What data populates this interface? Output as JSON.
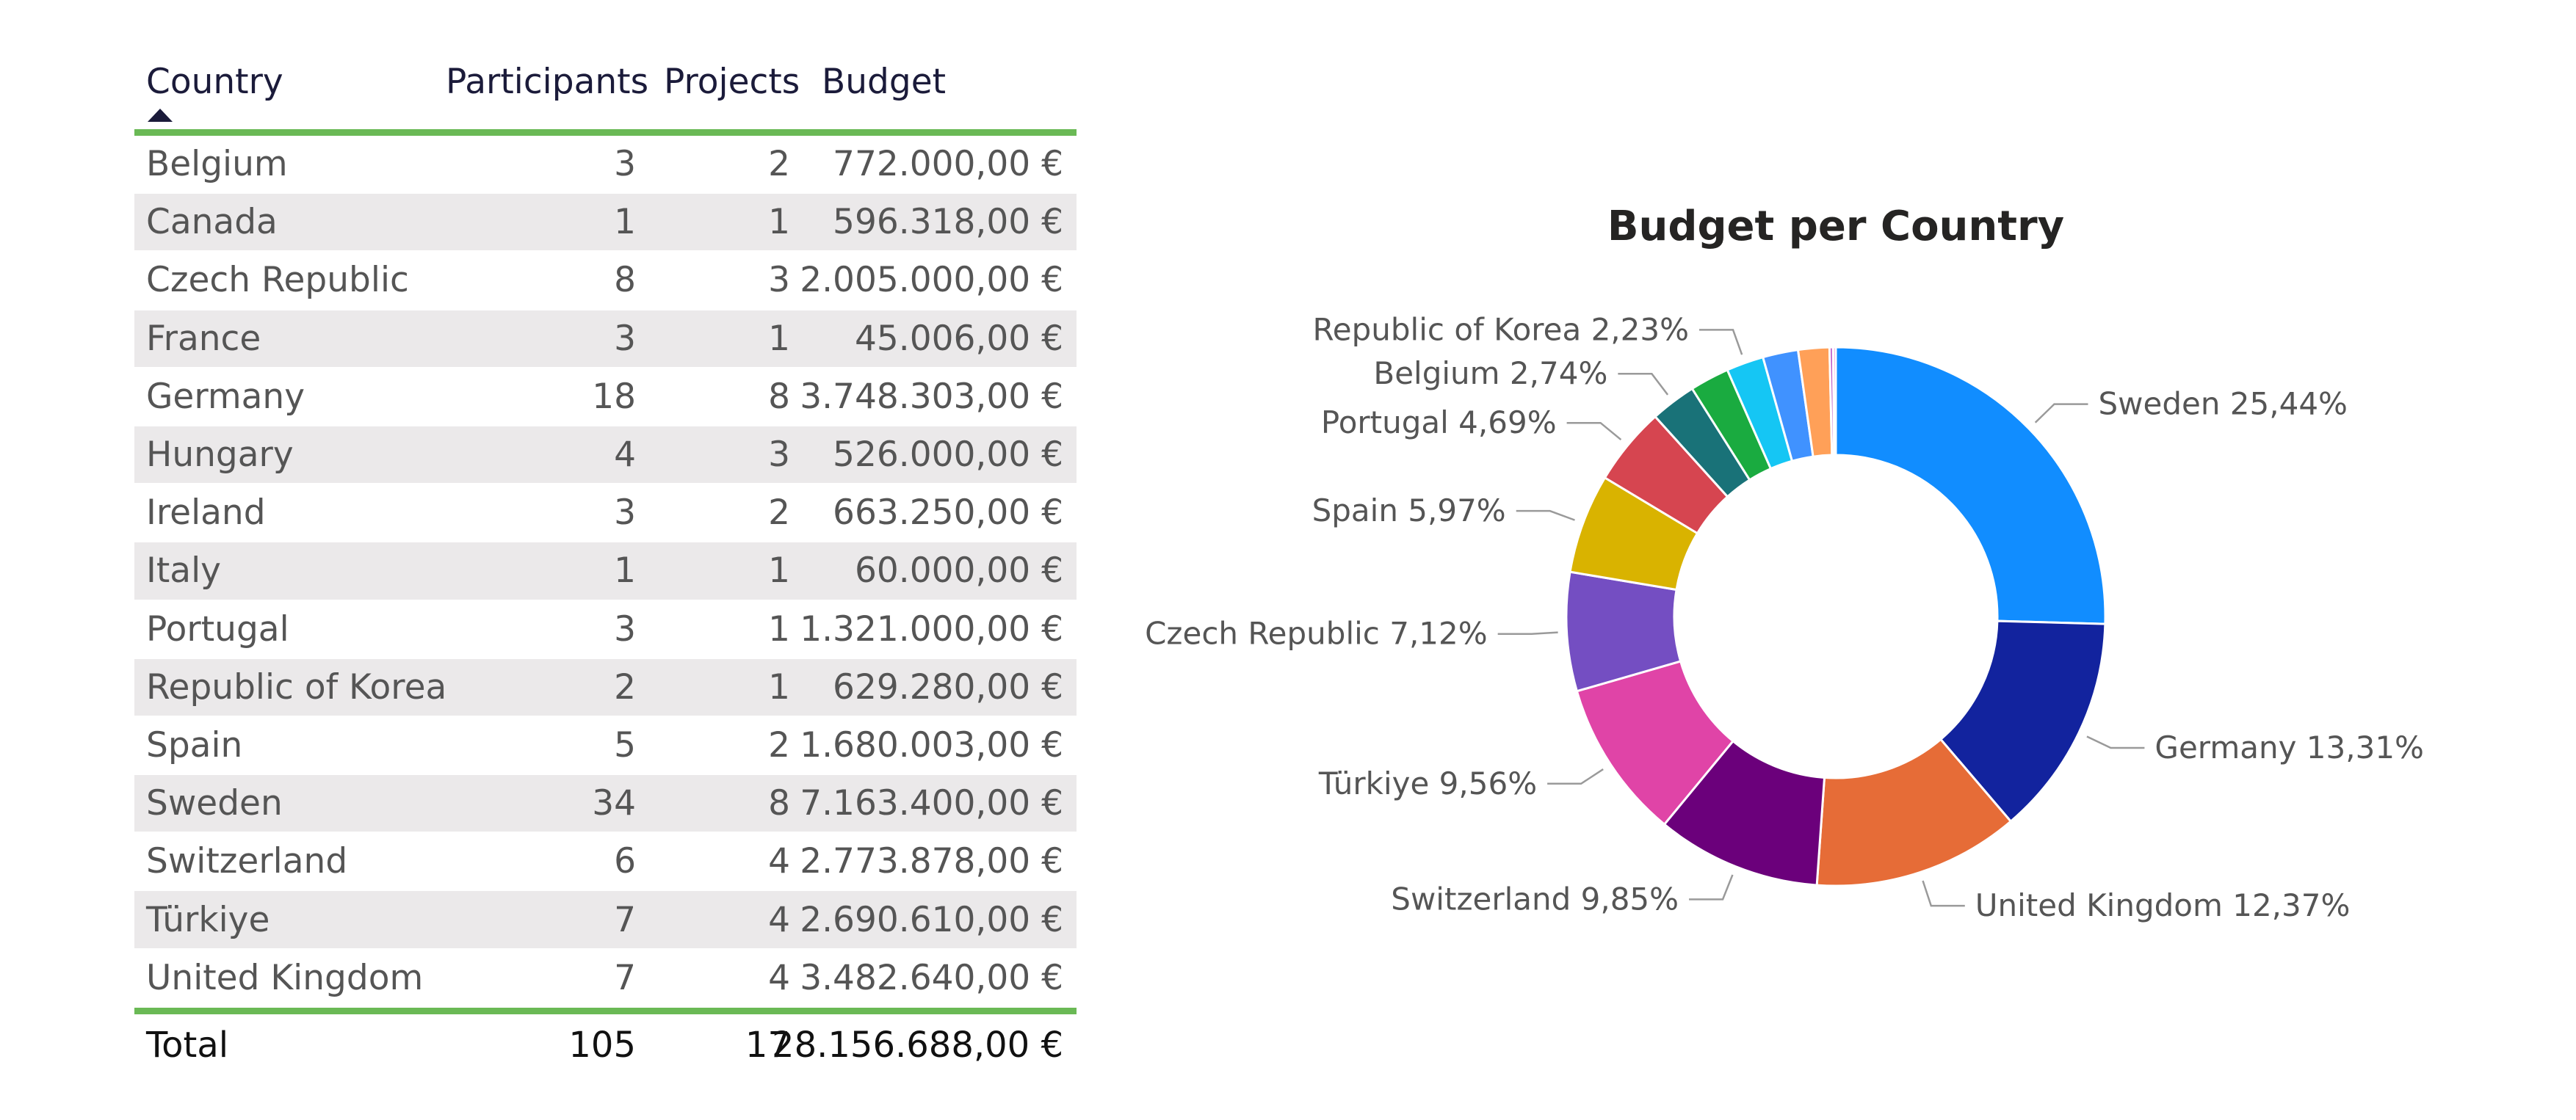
{
  "table": {
    "headers": {
      "country": "Country",
      "participants": "Participants",
      "projects": "Projects",
      "budget": "Budget"
    },
    "rows": [
      {
        "country": "Belgium",
        "participants": "3",
        "projects": "2",
        "budget": "772.000,00 €"
      },
      {
        "country": "Canada",
        "participants": "1",
        "projects": "1",
        "budget": "596.318,00 €"
      },
      {
        "country": "Czech Republic",
        "participants": "8",
        "projects": "3",
        "budget": "2.005.000,00 €"
      },
      {
        "country": "France",
        "participants": "3",
        "projects": "1",
        "budget": "45.006,00 €"
      },
      {
        "country": "Germany",
        "participants": "18",
        "projects": "8",
        "budget": "3.748.303,00 €"
      },
      {
        "country": "Hungary",
        "participants": "4",
        "projects": "3",
        "budget": "526.000,00 €"
      },
      {
        "country": "Ireland",
        "participants": "3",
        "projects": "2",
        "budget": "663.250,00 €"
      },
      {
        "country": "Italy",
        "participants": "1",
        "projects": "1",
        "budget": "60.000,00 €"
      },
      {
        "country": "Portugal",
        "participants": "3",
        "projects": "1",
        "budget": "1.321.000,00 €"
      },
      {
        "country": "Republic of Korea",
        "participants": "2",
        "projects": "1",
        "budget": "629.280,00 €"
      },
      {
        "country": "Spain",
        "participants": "5",
        "projects": "2",
        "budget": "1.680.003,00 €"
      },
      {
        "country": "Sweden",
        "participants": "34",
        "projects": "8",
        "budget": "7.163.400,00 €"
      },
      {
        "country": "Switzerland",
        "participants": "6",
        "projects": "4",
        "budget": "2.773.878,00 €"
      },
      {
        "country": "Türkiye",
        "participants": "7",
        "projects": "4",
        "budget": "2.690.610,00 €"
      },
      {
        "country": "United Kingdom",
        "participants": "7",
        "projects": "4",
        "budget": "3.482.640,00 €"
      }
    ],
    "total": {
      "label": "Total",
      "participants": "105",
      "projects": "17",
      "budget": "28.156.688,00 €"
    }
  },
  "colors": {
    "table_accent": "#6ab955",
    "row_alt": "#ebe9ea"
  },
  "chart_data": {
    "type": "pie",
    "style": "donut",
    "title": "Budget per Country",
    "slices": [
      {
        "label": "Sweden",
        "value": 7163400,
        "percent_text": "25,44%",
        "color": "#118dff",
        "show_label": true
      },
      {
        "label": "Germany",
        "value": 3748303,
        "percent_text": "13,31%",
        "color": "#12239e",
        "show_label": true
      },
      {
        "label": "United Kingdom",
        "value": 3482640,
        "percent_text": "12,37%",
        "color": "#e66c37",
        "show_label": true
      },
      {
        "label": "Switzerland",
        "value": 2773878,
        "percent_text": "9,85%",
        "color": "#6b007b",
        "show_label": true
      },
      {
        "label": "Türkiye",
        "value": 2690610,
        "percent_text": "9,56%",
        "color": "#e044a7",
        "show_label": true
      },
      {
        "label": "Czech Republic",
        "value": 2005000,
        "percent_text": "7,12%",
        "color": "#744ec2",
        "show_label": true
      },
      {
        "label": "Spain",
        "value": 1680003,
        "percent_text": "5,97%",
        "color": "#d9b300",
        "show_label": true
      },
      {
        "label": "Portugal",
        "value": 1321000,
        "percent_text": "4,69%",
        "color": "#d64550",
        "show_label": true
      },
      {
        "label": "Belgium",
        "value": 772000,
        "percent_text": "2,74%",
        "color": "#197278",
        "show_label": true
      },
      {
        "label": "Ireland",
        "value": 663250,
        "percent_text": "",
        "color": "#1aab40",
        "show_label": false
      },
      {
        "label": "Republic of Korea",
        "value": 629280,
        "percent_text": "2,23%",
        "color": "#15c6f4",
        "show_label": true
      },
      {
        "label": "Canada",
        "value": 596318,
        "percent_text": "",
        "color": "#4092ff",
        "show_label": false
      },
      {
        "label": "Hungary",
        "value": 526000,
        "percent_text": "",
        "color": "#ffa058",
        "show_label": false
      },
      {
        "label": "Italy",
        "value": 60000,
        "percent_text": "",
        "color": "#be5dc9",
        "show_label": false
      },
      {
        "label": "France",
        "value": 45006,
        "percent_text": "",
        "color": "#f472d0",
        "show_label": false
      }
    ]
  }
}
